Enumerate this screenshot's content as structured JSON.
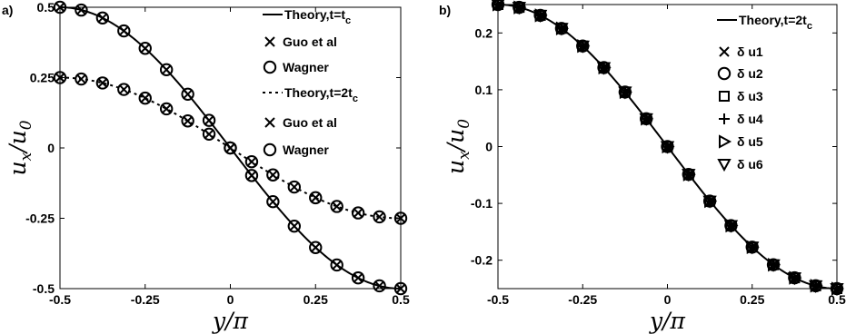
{
  "chart_data": [
    {
      "panel_label": "a)",
      "type": "line",
      "xlabel": "y/π",
      "ylabel": "u_x/u_0",
      "xlim": [
        -0.5,
        0.5
      ],
      "ylim": [
        -0.5,
        0.5
      ],
      "xticks": [
        -0.5,
        -0.25,
        0,
        0.25,
        0.5
      ],
      "xtick_labels": [
        "-0.5",
        "-0.25",
        "0",
        "0.25",
        "0.5"
      ],
      "yticks": [
        -0.5,
        -0.25,
        0,
        0.25,
        0.5
      ],
      "ytick_labels": [
        "-0.5",
        "-0.25",
        "0",
        "0.25",
        "0.5"
      ],
      "grid": false,
      "legend_position": "top-right",
      "series": [
        {
          "name": "Theory,t=t",
          "name_sub": "c",
          "kind": "line",
          "style": "solid",
          "curve": {
            "amplitude": 0.5
          }
        },
        {
          "name": "Guo et al",
          "kind": "marker",
          "marker": "x",
          "x": [
            -0.5,
            -0.4375,
            -0.375,
            -0.3125,
            -0.25,
            -0.1875,
            -0.125,
            -0.0625,
            0,
            0.0625,
            0.125,
            0.1875,
            0.25,
            0.3125,
            0.375,
            0.4375,
            0.5
          ],
          "y": [
            0.5,
            0.49,
            0.462,
            0.416,
            0.354,
            0.278,
            0.191,
            0.098,
            0,
            -0.098,
            -0.191,
            -0.278,
            -0.354,
            -0.416,
            -0.462,
            -0.49,
            -0.5
          ]
        },
        {
          "name": "Wagner",
          "kind": "marker",
          "marker": "o",
          "x": [
            -0.5,
            -0.4375,
            -0.375,
            -0.3125,
            -0.25,
            -0.1875,
            -0.125,
            -0.0625,
            0,
            0.0625,
            0.125,
            0.1875,
            0.25,
            0.3125,
            0.375,
            0.4375,
            0.5
          ],
          "y": [
            0.5,
            0.49,
            0.462,
            0.416,
            0.354,
            0.278,
            0.191,
            0.098,
            0,
            -0.098,
            -0.191,
            -0.278,
            -0.354,
            -0.416,
            -0.462,
            -0.49,
            -0.5
          ]
        },
        {
          "name": "Theory,t=2t",
          "name_sub": "c",
          "kind": "line",
          "style": "dotted",
          "curve": {
            "amplitude": 0.25
          }
        },
        {
          "name": "Guo et al",
          "kind": "marker",
          "marker": "x",
          "x": [
            -0.5,
            -0.4375,
            -0.375,
            -0.3125,
            -0.25,
            -0.1875,
            -0.125,
            -0.0625,
            0,
            0.0625,
            0.125,
            0.1875,
            0.25,
            0.3125,
            0.375,
            0.4375,
            0.5
          ],
          "y": [
            0.25,
            0.245,
            0.231,
            0.208,
            0.177,
            0.139,
            0.096,
            0.049,
            0,
            -0.049,
            -0.096,
            -0.139,
            -0.177,
            -0.208,
            -0.231,
            -0.245,
            -0.25
          ]
        },
        {
          "name": "Wagner",
          "kind": "marker",
          "marker": "o",
          "x": [
            -0.5,
            -0.4375,
            -0.375,
            -0.3125,
            -0.25,
            -0.1875,
            -0.125,
            -0.0625,
            0,
            0.0625,
            0.125,
            0.1875,
            0.25,
            0.3125,
            0.375,
            0.4375,
            0.5
          ],
          "y": [
            0.25,
            0.245,
            0.231,
            0.208,
            0.177,
            0.139,
            0.096,
            0.049,
            0,
            -0.049,
            -0.096,
            -0.139,
            -0.177,
            -0.208,
            -0.231,
            -0.245,
            -0.25
          ]
        }
      ]
    },
    {
      "panel_label": "b)",
      "type": "line",
      "xlabel": "y/π",
      "ylabel": "u_x/u_0",
      "xlim": [
        -0.5,
        0.5
      ],
      "ylim": [
        -0.25,
        0.25
      ],
      "xticks": [
        -0.5,
        -0.25,
        0,
        0.25,
        0.5
      ],
      "xtick_labels": [
        "-0.5",
        "-0.25",
        "0",
        "0.25",
        "0.5"
      ],
      "yticks": [
        -0.2,
        -0.1,
        0,
        0.1,
        0.2
      ],
      "ytick_labels": [
        "-0.2",
        "-0.1",
        "0",
        "0.1",
        "0.2"
      ],
      "grid": false,
      "legend_position": "top-right",
      "series": [
        {
          "name": "Theory,t=2t",
          "name_sub": "c",
          "kind": "line",
          "style": "solid",
          "curve": {
            "amplitude": 0.25
          }
        },
        {
          "name": "δ u1",
          "kind": "marker",
          "marker": "x",
          "x": [
            -0.5,
            -0.4375,
            -0.375,
            -0.3125,
            -0.25,
            -0.1875,
            -0.125,
            -0.0625,
            0,
            0.0625,
            0.125,
            0.1875,
            0.25,
            0.3125,
            0.375,
            0.4375,
            0.5
          ],
          "y": [
            0.25,
            0.245,
            0.231,
            0.208,
            0.177,
            0.139,
            0.096,
            0.049,
            0,
            -0.049,
            -0.096,
            -0.139,
            -0.177,
            -0.208,
            -0.231,
            -0.245,
            -0.25
          ]
        },
        {
          "name": "δ u2",
          "kind": "marker",
          "marker": "o",
          "x": [
            -0.5,
            -0.4375,
            -0.375,
            -0.3125,
            -0.25,
            -0.1875,
            -0.125,
            -0.0625,
            0,
            0.0625,
            0.125,
            0.1875,
            0.25,
            0.3125,
            0.375,
            0.4375,
            0.5
          ],
          "y": [
            0.25,
            0.245,
            0.231,
            0.208,
            0.177,
            0.139,
            0.096,
            0.049,
            0,
            -0.049,
            -0.096,
            -0.139,
            -0.177,
            -0.208,
            -0.231,
            -0.245,
            -0.25
          ]
        },
        {
          "name": "δ u3",
          "kind": "marker",
          "marker": "square",
          "x": [
            -0.5,
            -0.4375,
            -0.375,
            -0.3125,
            -0.25,
            -0.1875,
            -0.125,
            -0.0625,
            0,
            0.0625,
            0.125,
            0.1875,
            0.25,
            0.3125,
            0.375,
            0.4375,
            0.5
          ],
          "y": [
            0.25,
            0.245,
            0.231,
            0.208,
            0.177,
            0.139,
            0.096,
            0.049,
            0,
            -0.049,
            -0.096,
            -0.139,
            -0.177,
            -0.208,
            -0.231,
            -0.245,
            -0.25
          ]
        },
        {
          "name": "δ u4",
          "kind": "marker",
          "marker": "plus",
          "x": [
            -0.5,
            -0.4375,
            -0.375,
            -0.3125,
            -0.25,
            -0.1875,
            -0.125,
            -0.0625,
            0,
            0.0625,
            0.125,
            0.1875,
            0.25,
            0.3125,
            0.375,
            0.4375,
            0.5
          ],
          "y": [
            0.25,
            0.245,
            0.231,
            0.208,
            0.177,
            0.139,
            0.096,
            0.049,
            0,
            -0.049,
            -0.096,
            -0.139,
            -0.177,
            -0.208,
            -0.231,
            -0.245,
            -0.25
          ]
        },
        {
          "name": "δ u5",
          "kind": "marker",
          "marker": "triangle-right",
          "x": [
            -0.5,
            -0.4375,
            -0.375,
            -0.3125,
            -0.25,
            -0.1875,
            -0.125,
            -0.0625,
            0,
            0.0625,
            0.125,
            0.1875,
            0.25,
            0.3125,
            0.375,
            0.4375,
            0.5
          ],
          "y": [
            0.25,
            0.245,
            0.231,
            0.208,
            0.177,
            0.139,
            0.096,
            0.049,
            0,
            -0.049,
            -0.096,
            -0.139,
            -0.177,
            -0.208,
            -0.231,
            -0.245,
            -0.25
          ]
        },
        {
          "name": "δ u6",
          "kind": "marker",
          "marker": "triangle-down",
          "x": [
            -0.5,
            -0.4375,
            -0.375,
            -0.3125,
            -0.25,
            -0.1875,
            -0.125,
            -0.0625,
            0,
            0.0625,
            0.125,
            0.1875,
            0.25,
            0.3125,
            0.375,
            0.4375,
            0.5
          ],
          "y": [
            0.25,
            0.245,
            0.231,
            0.208,
            0.177,
            0.139,
            0.096,
            0.049,
            0,
            -0.049,
            -0.096,
            -0.139,
            -0.177,
            -0.208,
            -0.231,
            -0.245,
            -0.25
          ]
        }
      ]
    }
  ]
}
